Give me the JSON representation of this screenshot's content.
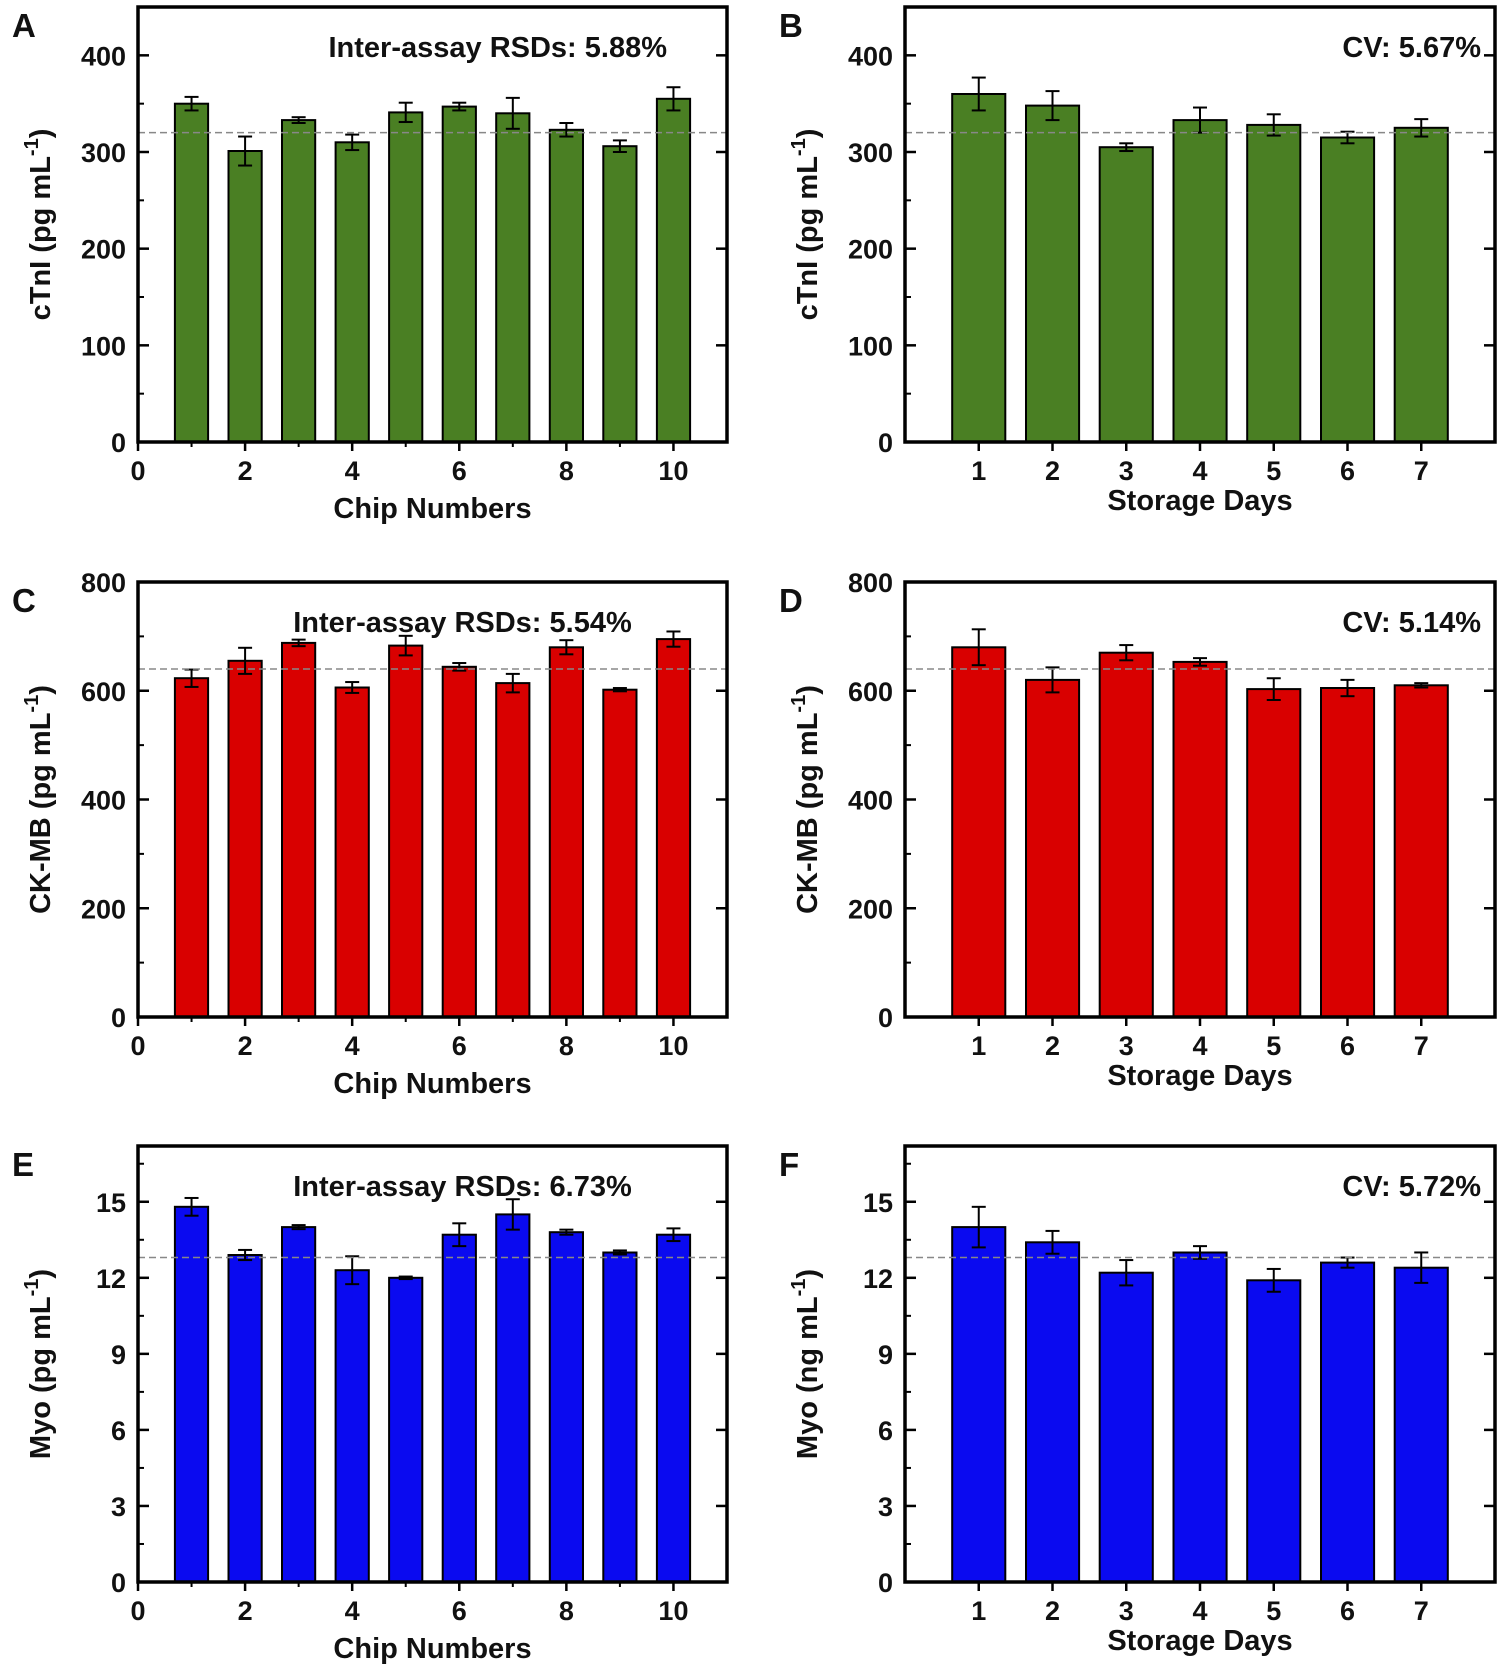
{
  "figure": {
    "panels": [
      "A",
      "B",
      "C",
      "D",
      "E",
      "F"
    ]
  },
  "chart_data": [
    {
      "panel_letter": "A",
      "type": "bar",
      "x": [
        1,
        2,
        3,
        4,
        5,
        6,
        7,
        8,
        9,
        10
      ],
      "values": [
        350,
        301,
        333,
        310,
        341,
        347,
        340,
        323,
        306,
        355
      ],
      "errors": [
        7,
        15,
        3,
        8,
        10,
        4,
        16,
        7,
        6,
        12
      ],
      "xlim": [
        0,
        11
      ],
      "xticks": [
        0,
        2,
        4,
        6,
        8,
        10
      ],
      "ylim": [
        0,
        450
      ],
      "yticks": [
        0,
        100,
        200,
        300,
        400
      ],
      "reference_line": 320,
      "xlabel": "Chip Numbers",
      "ylabel": "cTnI (pg mL",
      "ylabel_sup": "-1",
      "ylabel_end": ")",
      "annotation": "Inter-assay RSDs: 5.88%",
      "color": "#4a7f23"
    },
    {
      "panel_letter": "B",
      "type": "bar",
      "x": [
        1,
        2,
        3,
        4,
        5,
        6,
        7
      ],
      "values": [
        360,
        348,
        305,
        333,
        328,
        315,
        325
      ],
      "errors": [
        17,
        15,
        4,
        13,
        11,
        6,
        9
      ],
      "xlim": [
        0,
        8
      ],
      "xticks": [
        1,
        2,
        3,
        4,
        5,
        6,
        7
      ],
      "ylim": [
        0,
        450
      ],
      "yticks": [
        0,
        100,
        200,
        300,
        400
      ],
      "reference_line": 320,
      "xlabel": "Storage Days",
      "ylabel": "cTnI (pg mL",
      "ylabel_sup": "-1",
      "ylabel_end": ")",
      "annotation": "CV: 5.67%",
      "color": "#4a7f23"
    },
    {
      "panel_letter": "C",
      "type": "bar",
      "x": [
        1,
        2,
        3,
        4,
        5,
        6,
        7,
        8,
        9,
        10
      ],
      "values": [
        623,
        655,
        688,
        606,
        683,
        644,
        614,
        680,
        602,
        695
      ],
      "errors": [
        16,
        24,
        6,
        10,
        18,
        7,
        17,
        13,
        3,
        14
      ],
      "xlim": [
        0,
        11
      ],
      "xticks": [
        0,
        2,
        4,
        6,
        8,
        10
      ],
      "ylim": [
        0,
        800
      ],
      "yticks": [
        0,
        200,
        400,
        600,
        800
      ],
      "reference_line": 640,
      "xlabel": "Chip Numbers",
      "ylabel": "CK-MB (pg mL",
      "ylabel_sup": "-1",
      "ylabel_end": ")",
      "annotation": "Inter-assay RSDs: 5.54%",
      "color": "#d90000"
    },
    {
      "panel_letter": "D",
      "type": "bar",
      "x": [
        1,
        2,
        3,
        4,
        5,
        6,
        7
      ],
      "values": [
        680,
        620,
        670,
        653,
        603,
        605,
        610
      ],
      "errors": [
        33,
        23,
        14,
        7,
        20,
        15,
        4
      ],
      "xlim": [
        0,
        8
      ],
      "xticks": [
        1,
        2,
        3,
        4,
        5,
        6,
        7
      ],
      "ylim": [
        0,
        800
      ],
      "yticks": [
        0,
        200,
        400,
        600,
        800
      ],
      "reference_line": 640,
      "xlabel": "Storage Days",
      "ylabel": "CK-MB (pg mL",
      "ylabel_sup": "-1",
      "ylabel_end": ")",
      "annotation": "CV: 5.14%",
      "color": "#d90000"
    },
    {
      "panel_letter": "E",
      "type": "bar",
      "x": [
        1,
        2,
        3,
        4,
        5,
        6,
        7,
        8,
        9,
        10
      ],
      "values": [
        14.8,
        12.9,
        14.0,
        12.3,
        12.0,
        13.7,
        14.5,
        13.8,
        13.0,
        13.7
      ],
      "errors": [
        0.35,
        0.2,
        0.08,
        0.55,
        0.05,
        0.45,
        0.6,
        0.1,
        0.08,
        0.25
      ],
      "xlim": [
        0,
        11
      ],
      "xticks": [
        0,
        2,
        4,
        6,
        8,
        10
      ],
      "ylim": [
        0,
        17.2
      ],
      "yticks": [
        0,
        3,
        6,
        9,
        12,
        15
      ],
      "reference_line": 12.8,
      "xlabel": "Chip Numbers",
      "ylabel": "Myo (pg mL",
      "ylabel_sup": "-1",
      "ylabel_end": ")",
      "annotation": "Inter-assay RSDs: 6.73%",
      "color": "#0a0af0"
    },
    {
      "panel_letter": "F",
      "type": "bar",
      "x": [
        1,
        2,
        3,
        4,
        5,
        6,
        7
      ],
      "values": [
        14.0,
        13.4,
        12.2,
        13.0,
        11.9,
        12.6,
        12.4
      ],
      "errors": [
        0.8,
        0.45,
        0.5,
        0.25,
        0.45,
        0.2,
        0.6
      ],
      "xlim": [
        0,
        8
      ],
      "xticks": [
        1,
        2,
        3,
        4,
        5,
        6,
        7
      ],
      "ylim": [
        0,
        17.2
      ],
      "yticks": [
        0,
        3,
        6,
        9,
        12,
        15
      ],
      "reference_line": 12.8,
      "xlabel": "Storage Days",
      "ylabel": "Myo (ng mL",
      "ylabel_sup": "-1",
      "ylabel_end": ")",
      "annotation": "CV: 5.72%",
      "color": "#0a0af0"
    }
  ]
}
